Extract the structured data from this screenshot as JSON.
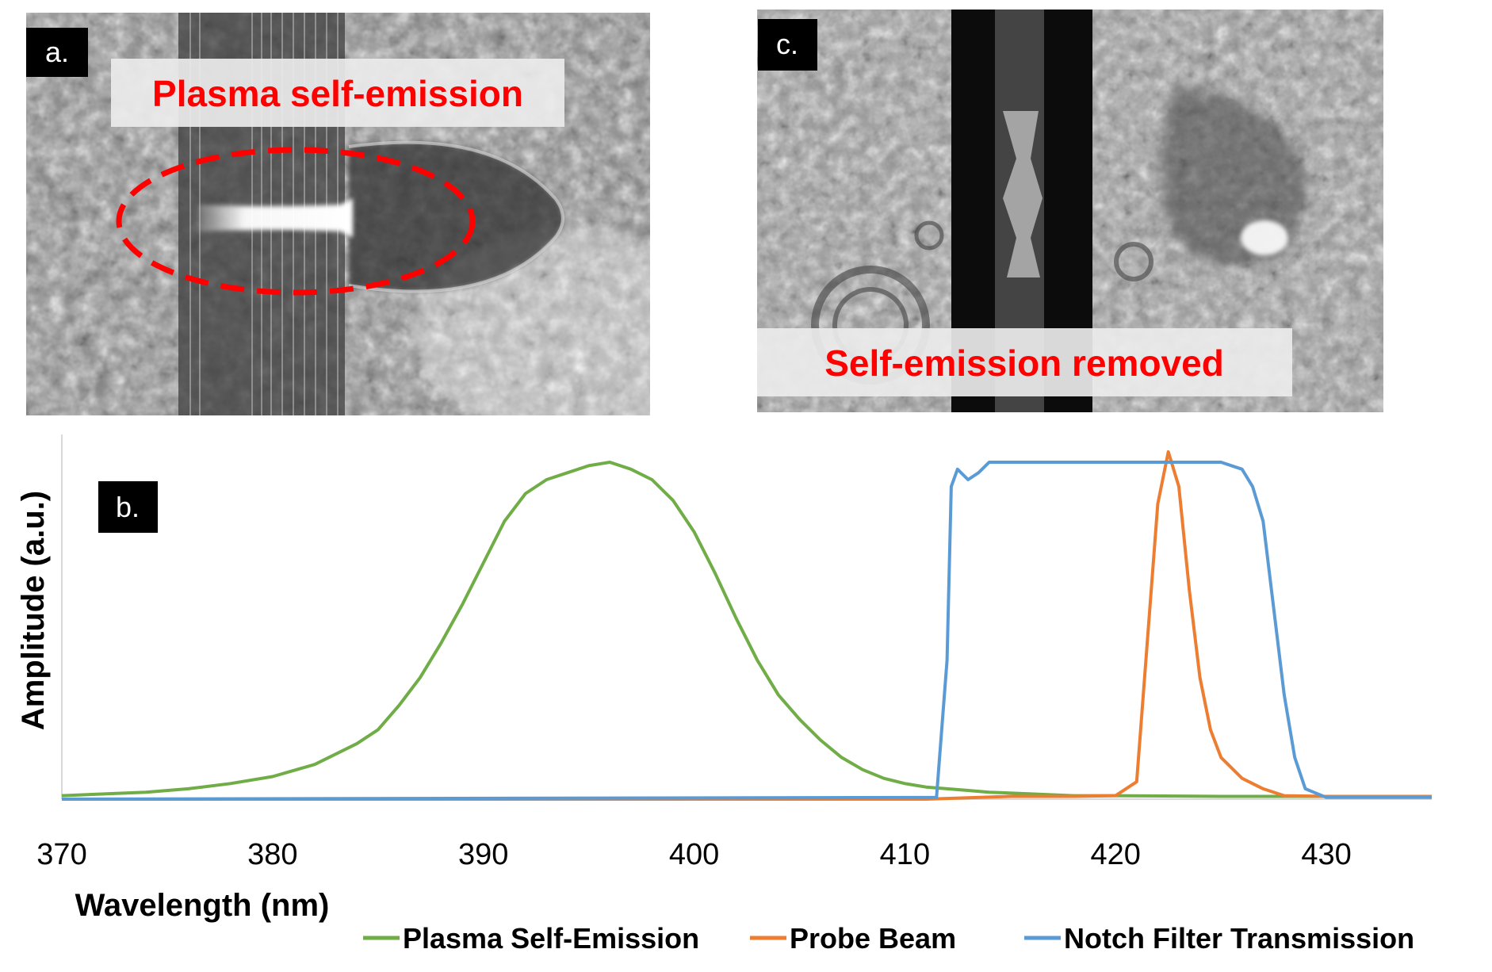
{
  "panels": {
    "a": {
      "badge": "a.",
      "caption": "Plasma self-emission",
      "caption_color": "#ff0000",
      "highlight": "dashed-ellipse"
    },
    "b": {
      "badge": "b."
    },
    "c": {
      "badge": "c.",
      "caption": "Self-emission removed",
      "caption_color": "#ff0000"
    }
  },
  "chart_data": {
    "type": "line",
    "xlabel": "Wavelength (nm)",
    "ylabel": "Amplitude (a.u.)",
    "xlim": [
      370,
      435
    ],
    "ylim": [
      0,
      1.05
    ],
    "xticks": [
      370,
      380,
      390,
      400,
      410,
      420,
      430
    ],
    "y_tick_labels_shown": false,
    "grid": false,
    "legend_position": "bottom",
    "series": [
      {
        "name": "Plasma Self-Emission",
        "color": "#70ad47",
        "x": [
          370,
          372,
          374,
          376,
          378,
          380,
          382,
          384,
          385,
          386,
          387,
          388,
          389,
          390,
          391,
          392,
          393,
          394,
          395,
          396,
          397,
          398,
          399,
          400,
          401,
          402,
          403,
          404,
          405,
          406,
          407,
          408,
          409,
          410,
          411,
          412,
          413,
          414,
          416,
          418,
          420,
          425,
          430,
          435
        ],
        "y": [
          0.01,
          0.015,
          0.02,
          0.03,
          0.045,
          0.065,
          0.1,
          0.16,
          0.2,
          0.27,
          0.35,
          0.45,
          0.56,
          0.68,
          0.8,
          0.88,
          0.92,
          0.94,
          0.96,
          0.97,
          0.95,
          0.92,
          0.86,
          0.77,
          0.65,
          0.52,
          0.4,
          0.3,
          0.23,
          0.17,
          0.12,
          0.085,
          0.06,
          0.045,
          0.035,
          0.03,
          0.025,
          0.02,
          0.015,
          0.01,
          0.01,
          0.008,
          0.008,
          0.008
        ]
      },
      {
        "name": "Probe Beam",
        "color": "#ed7d31",
        "x": [
          370,
          411,
          412,
          413,
          414,
          415,
          416,
          418,
          420,
          421,
          421.5,
          422,
          422.5,
          423,
          423.5,
          424,
          424.5,
          425,
          426,
          427,
          428,
          430,
          435
        ],
        "y": [
          0.0,
          0.0,
          0.002,
          0.004,
          0.006,
          0.008,
          0.008,
          0.008,
          0.01,
          0.05,
          0.45,
          0.85,
          1.0,
          0.9,
          0.6,
          0.35,
          0.2,
          0.12,
          0.06,
          0.03,
          0.01,
          0.008,
          0.008
        ]
      },
      {
        "name": "Notch Filter Transmission",
        "color": "#5b9bd5",
        "x": [
          370,
          411.5,
          412,
          412.2,
          412.5,
          413,
          413.5,
          414,
          415,
          420,
          425,
          426,
          426.5,
          427,
          427.5,
          428,
          428.5,
          429,
          430,
          435
        ],
        "y": [
          0.0,
          0.005,
          0.4,
          0.9,
          0.95,
          0.92,
          0.94,
          0.97,
          0.97,
          0.97,
          0.97,
          0.95,
          0.9,
          0.8,
          0.55,
          0.3,
          0.12,
          0.03,
          0.005,
          0.005
        ]
      }
    ]
  }
}
